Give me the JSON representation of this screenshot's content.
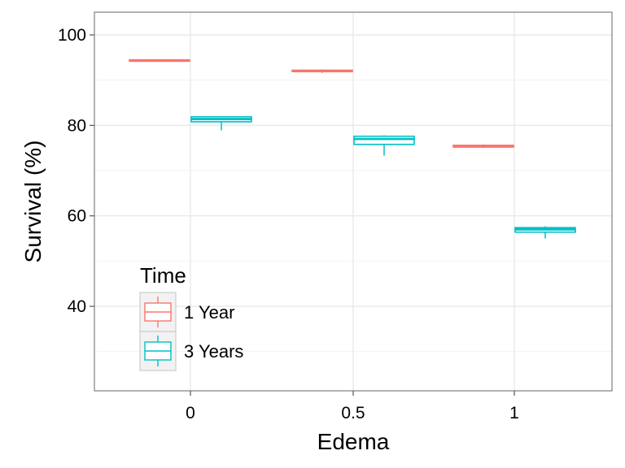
{
  "chart_data": {
    "type": "boxplot",
    "xlabel": "Edema",
    "ylabel": "Survival (%)",
    "categories": [
      "0",
      "0.5",
      "1"
    ],
    "ylim": [
      20,
      105
    ],
    "yticks": [
      40,
      60,
      80,
      100
    ],
    "grid": true,
    "legend": {
      "title": "Time",
      "position": "bottom-left",
      "entries": [
        "1 Year",
        "3 Years"
      ]
    },
    "series": [
      {
        "name": "1 Year",
        "color": "#F8766D",
        "boxes": [
          {
            "category": "0",
            "min": 94.1,
            "q1": 94.2,
            "median": 94.3,
            "q3": 94.5,
            "max": 94.6
          },
          {
            "category": "0.5",
            "min": 91.6,
            "q1": 91.9,
            "median": 92.0,
            "q3": 92.2,
            "max": 92.4
          },
          {
            "category": "1",
            "min": 75.0,
            "q1": 75.2,
            "median": 75.4,
            "q3": 75.6,
            "max": 75.8
          }
        ]
      },
      {
        "name": "3 Years",
        "color": "#00BFC4",
        "boxes": [
          {
            "category": "0",
            "min": 78.9,
            "q1": 80.8,
            "median": 81.4,
            "q3": 81.9,
            "max": 82.0
          },
          {
            "category": "0.5",
            "min": 73.3,
            "q1": 75.8,
            "median": 77.0,
            "q3": 77.6,
            "max": 77.8
          },
          {
            "category": "1",
            "min": 55.0,
            "q1": 56.4,
            "median": 57.0,
            "q3": 57.4,
            "max": 57.7
          }
        ]
      }
    ]
  }
}
